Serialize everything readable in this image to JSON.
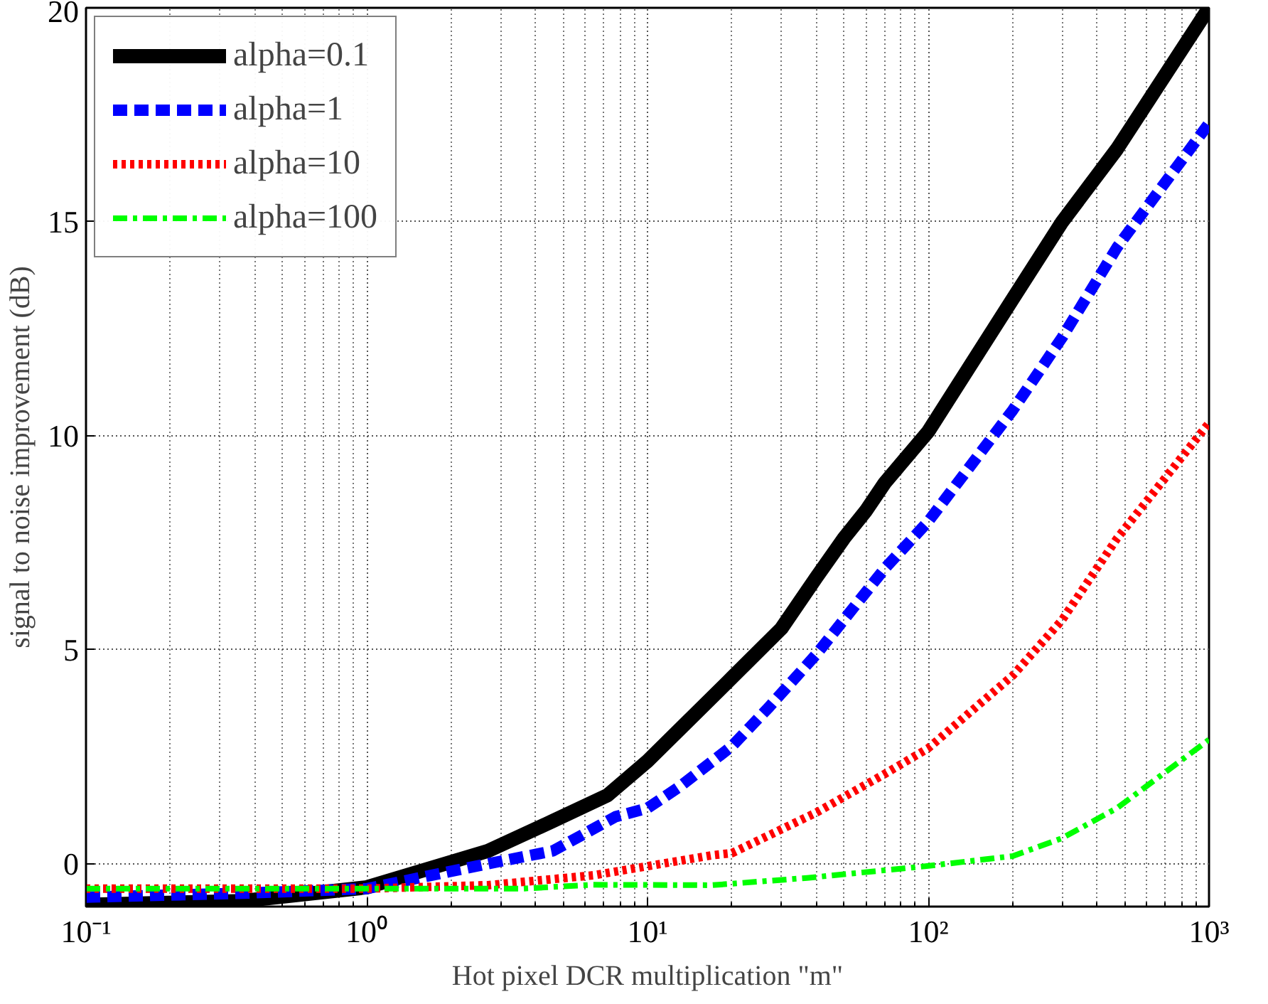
{
  "chart_data": {
    "type": "line",
    "xlabel": "Hot pixel DCR multiplication \"m\"",
    "ylabel": "signal to noise improvement (dB)",
    "log": "x",
    "xlim": [
      0.1,
      1000
    ],
    "ylim": [
      -1,
      20
    ],
    "xticks": [
      {
        "value": 0.1,
        "label": "10⁻¹"
      },
      {
        "value": 1,
        "label": "10⁰"
      },
      {
        "value": 10,
        "label": "10¹"
      },
      {
        "value": 100,
        "label": "10²"
      },
      {
        "value": 1000,
        "label": "10³"
      }
    ],
    "yticks": [
      0,
      5,
      10,
      15,
      20
    ],
    "grid": true,
    "legend": "top left",
    "series": [
      {
        "name": "alpha=0.1",
        "color": "#000000",
        "line_style": "solid",
        "x": [
          0.1,
          0.36,
          1,
          2.7,
          4.6,
          7.2,
          10,
          20,
          30,
          40,
          50,
          60,
          70,
          100,
          200,
          300,
          470,
          1000
        ],
        "values": [
          -0.96,
          -0.87,
          -0.55,
          0.3,
          1.0,
          1.6,
          2.4,
          4.35,
          5.5,
          6.7,
          7.6,
          8.25,
          8.9,
          10.1,
          13.2,
          15.0,
          16.7,
          20.0
        ]
      },
      {
        "name": "alpha=1",
        "color": "#0000ff",
        "line_style": "dashed",
        "x": [
          0.1,
          0.36,
          1,
          2.7,
          4.6,
          7.7,
          10,
          13,
          20,
          27,
          40,
          70,
          100,
          200,
          300,
          470,
          1000
        ],
        "values": [
          -0.78,
          -0.69,
          -0.58,
          0.0,
          0.3,
          1.1,
          1.3,
          1.8,
          2.75,
          3.65,
          4.9,
          6.9,
          8.0,
          10.6,
          12.3,
          14.4,
          17.3
        ]
      },
      {
        "name": "alpha=10",
        "color": "#ff0000",
        "line_style": "dotted",
        "x": [
          0.1,
          1,
          2.7,
          6.4,
          17,
          20,
          40,
          70,
          100,
          200,
          300,
          470,
          1000
        ],
        "values": [
          -0.58,
          -0.58,
          -0.5,
          -0.27,
          0.2,
          0.25,
          1.2,
          2.1,
          2.7,
          4.4,
          5.7,
          7.6,
          10.3
        ]
      },
      {
        "name": "alpha=100",
        "color": "#00ff00",
        "line_style": "dashdot",
        "x": [
          0.1,
          1,
          3.6,
          6.4,
          17,
          37,
          84,
          100,
          200,
          300,
          470,
          1000
        ],
        "values": [
          -0.58,
          -0.58,
          -0.58,
          -0.49,
          -0.5,
          -0.33,
          -0.1,
          -0.05,
          0.18,
          0.6,
          1.3,
          2.9
        ]
      }
    ]
  }
}
